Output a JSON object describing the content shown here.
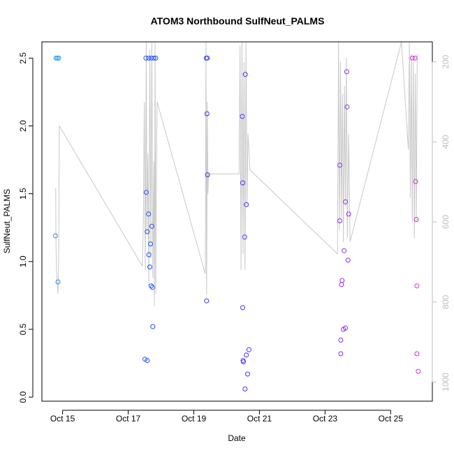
{
  "chart_data": {
    "type": "scatter",
    "title": "ATOM3 Northbound SulfNeut_PALMS",
    "xlabel": "Date",
    "ylabel": "SulfNeut_PALMS",
    "xlim": [
      14.37,
      26.27
    ],
    "ylim": [
      -0.03,
      2.62
    ],
    "x_ticks": [
      {
        "value": 15,
        "label": "Oct 15"
      },
      {
        "value": 17,
        "label": "Oct 17"
      },
      {
        "value": 19,
        "label": "Oct 19"
      },
      {
        "value": 21,
        "label": "Oct 21"
      },
      {
        "value": 23,
        "label": "Oct 23"
      },
      {
        "value": 25,
        "label": "Oct 25"
      }
    ],
    "y_ticks": [
      0.0,
      0.5,
      1.0,
      1.5,
      2.0,
      2.5
    ],
    "y_tick_labels": [
      "0.0",
      "0.5",
      "1.0",
      "1.5",
      "2.0",
      "2.5"
    ],
    "right_axis": {
      "description": "altitude/pressure (inverted)",
      "lim": [
        1048,
        150
      ],
      "ticks": [
        200,
        400,
        600,
        800,
        1000
      ],
      "tick_labels": [
        "200",
        "400",
        "600",
        "800",
        "1000"
      ],
      "color": "#bdbdbd"
    },
    "series": [
      {
        "name": "SulfNeut_PALMS",
        "color_scale": [
          "#1aa0e6",
          "#1e3cf0",
          "#6a2bf0",
          "#d42bd8"
        ],
        "points": [
          [
            14.78,
            1.19
          ],
          [
            14.8,
            2.5
          ],
          [
            14.84,
            2.5
          ],
          [
            14.88,
            2.5
          ],
          [
            14.86,
            0.85
          ],
          [
            17.51,
            0.28
          ],
          [
            17.58,
            0.27
          ],
          [
            17.54,
            2.5
          ],
          [
            17.55,
            1.51
          ],
          [
            17.58,
            1.22
          ],
          [
            17.62,
            1.35
          ],
          [
            17.62,
            2.5
          ],
          [
            17.63,
            1.05
          ],
          [
            17.66,
            0.96
          ],
          [
            17.7,
            2.5
          ],
          [
            17.68,
            1.13
          ],
          [
            17.7,
            0.82
          ],
          [
            17.74,
            0.81
          ],
          [
            17.72,
            1.26
          ],
          [
            17.75,
            0.52
          ],
          [
            17.78,
            2.5
          ],
          [
            17.84,
            2.5
          ],
          [
            19.38,
            2.5
          ],
          [
            19.41,
            2.5
          ],
          [
            19.4,
            2.09
          ],
          [
            19.42,
            1.64
          ],
          [
            19.39,
            0.71
          ],
          [
            20.48,
            2.07
          ],
          [
            20.49,
            1.58
          ],
          [
            20.49,
            0.66
          ],
          [
            20.5,
            0.27
          ],
          [
            20.51,
            0.26
          ],
          [
            20.55,
            1.18
          ],
          [
            20.57,
            2.38
          ],
          [
            20.6,
            1.42
          ],
          [
            20.56,
            0.06
          ],
          [
            20.6,
            0.31
          ],
          [
            20.64,
            0.17
          ],
          [
            20.68,
            0.35
          ],
          [
            23.45,
            1.71
          ],
          [
            23.45,
            1.3
          ],
          [
            23.48,
            0.42
          ],
          [
            23.48,
            0.32
          ],
          [
            23.5,
            0.83
          ],
          [
            23.52,
            0.86
          ],
          [
            23.58,
            1.08
          ],
          [
            23.56,
            0.5
          ],
          [
            23.62,
            0.51
          ],
          [
            23.62,
            1.44
          ],
          [
            23.66,
            2.4
          ],
          [
            23.67,
            2.14
          ],
          [
            23.7,
            1.01
          ],
          [
            23.72,
            1.35
          ],
          [
            25.66,
            2.5
          ],
          [
            25.74,
            2.5
          ],
          [
            25.76,
            1.59
          ],
          [
            25.78,
            1.31
          ],
          [
            25.8,
            0.82
          ],
          [
            25.8,
            0.32
          ],
          [
            25.84,
            0.19
          ]
        ]
      },
      {
        "name": "altitude track",
        "color": "#c8c8c8",
        "axis": "right",
        "x": [
          14.79,
          14.8,
          14.82,
          14.86,
          14.88,
          14.9,
          17.43,
          17.46,
          17.49,
          17.52,
          17.55,
          17.57,
          17.6,
          17.63,
          17.66,
          17.69,
          17.72,
          17.75,
          17.78,
          17.8,
          17.82,
          17.84,
          17.86,
          17.88,
          19.35,
          19.37,
          19.39,
          19.4,
          19.41,
          19.43,
          19.45,
          20.38,
          20.41,
          20.44,
          20.47,
          20.5,
          20.53,
          20.56,
          20.59,
          20.62,
          20.65,
          20.68,
          20.71,
          23.38,
          23.41,
          23.44,
          23.47,
          23.5,
          23.53,
          23.56,
          23.59,
          23.62,
          23.65,
          23.68,
          23.72,
          23.76,
          25.33,
          25.54,
          25.57,
          25.6,
          25.63,
          25.66,
          25.69,
          25.72,
          25.75,
          25.78,
          25.81
        ],
        "y": [
          515,
          660,
          730,
          780,
          700,
          360,
          710,
          610,
          300,
          720,
          140,
          630,
          430,
          760,
          170,
          690,
          120,
          740,
          450,
          810,
          140,
          780,
          500,
          300,
          730,
          150,
          780,
          580,
          300,
          530,
          480,
          480,
          160,
          720,
          140,
          680,
          200,
          720,
          150,
          560,
          380,
          420,
          470,
          680,
          150,
          620,
          200,
          590,
          280,
          650,
          260,
          560,
          190,
          640,
          380,
          650,
          150,
          420,
          150,
          540,
          180,
          600,
          200,
          640,
          230,
          600,
          180
        ]
      }
    ]
  }
}
